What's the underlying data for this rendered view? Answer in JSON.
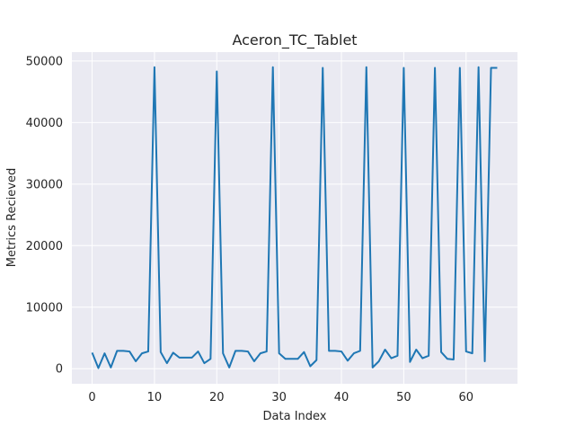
{
  "chart_data": {
    "type": "line",
    "title": "Aceron_TC_Tablet",
    "xlabel": "Data Index",
    "ylabel": "Metrics Recieved",
    "xlim": [
      -3.25,
      68.25
    ],
    "ylim": [
      -2450,
      51450
    ],
    "xticks": [
      0,
      10,
      20,
      30,
      40,
      50,
      60
    ],
    "yticks": [
      0,
      10000,
      20000,
      30000,
      40000,
      50000
    ],
    "grid": true,
    "legend": "none",
    "line_color": "#1f77b4",
    "background_color": "#eaeaf2",
    "series": [
      {
        "x": [
          0,
          1,
          2,
          3,
          4,
          5,
          6,
          7,
          8,
          9,
          10,
          11,
          12,
          13,
          14,
          15,
          16,
          17,
          18,
          19,
          20,
          21,
          22,
          23,
          24,
          25,
          26,
          27,
          28,
          29,
          30,
          31,
          32,
          33,
          34,
          35,
          36,
          37,
          38,
          39,
          40,
          41,
          42,
          43,
          44,
          45,
          46,
          47,
          48,
          49,
          50,
          51,
          52,
          53,
          54,
          55,
          56,
          57,
          58,
          59,
          60,
          61,
          62,
          63,
          64,
          65
        ],
        "values": [
          2600,
          100,
          2500,
          200,
          2900,
          2900,
          2800,
          1200,
          2500,
          2800,
          49000,
          2700,
          900,
          2600,
          1800,
          1800,
          1800,
          2800,
          900,
          1600,
          48300,
          2500,
          200,
          2900,
          2900,
          2800,
          1200,
          2500,
          2800,
          49000,
          2500,
          1600,
          1600,
          1600,
          2700,
          400,
          1400,
          48900,
          2900,
          2900,
          2800,
          1300,
          2500,
          2900,
          49000,
          200,
          1200,
          3100,
          1700,
          2100,
          48900,
          1100,
          3100,
          1700,
          2100,
          48900,
          2700,
          1600,
          1500,
          48900,
          2800,
          2500,
          49000,
          1200,
          48900,
          48900
        ]
      }
    ]
  }
}
